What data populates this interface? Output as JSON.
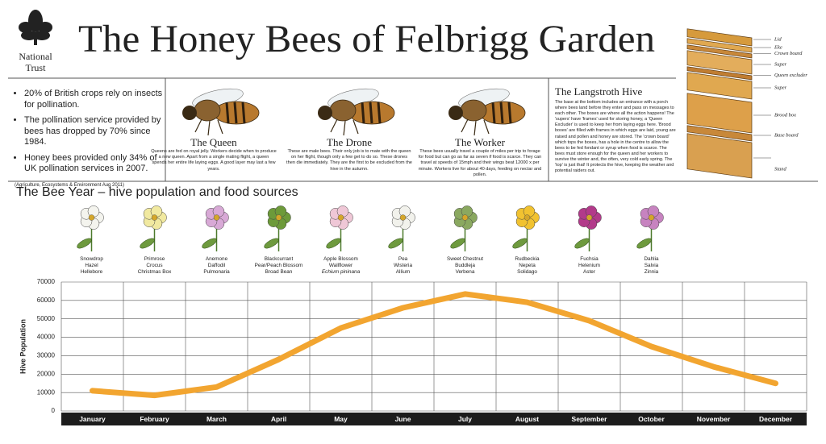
{
  "header": {
    "logo": [
      "National",
      "Trust"
    ],
    "title": "The Honey Bees of Felbrigg Garden"
  },
  "facts": {
    "items": [
      "20% of British crops rely on insects for pollination.",
      "The pollination service provided by bees has dropped by 70% since 1984.",
      "Honey bees provided only 34% of UK pollination services in 2007."
    ],
    "source": "(Agriculture, Ecosystems & Environment Aug 2011)"
  },
  "bees": [
    {
      "title": "The Queen",
      "text": "Queens are fed on royal jelly. Workers decide when to produce a new queen. Apart from a single mating flight, a queen spends her entire life laying eggs. A good layer may last a few years."
    },
    {
      "title": "The Drone",
      "text": "These are male bees. Their only job is to mate with the queen on her flight, though only a few get to do so. These drones then die immediately. They are the first to be excluded from the hive in the autumn."
    },
    {
      "title": "The Worker",
      "text": "These bees usually travel a couple of miles per trip to forage for food but can go as far as seven if food is scarce. They can travel at speeds of 15mph and their wings beat 12000 x per minute. Workers live for about 40 days, feeding on nectar and pollen."
    }
  ],
  "hive": {
    "title": "The Langstroth Hive",
    "text": "The base at the bottom includes an entrance with a porch where bees land before they enter and pass on messages to each other. The boxes are where all the action happens! The 'supers' have 'frames' used for storing honey, a 'Queen Excluder' is used to keep her from laying eggs here. 'Brood boxes' are filled with frames in which eggs are laid, young are raised and pollen and honey are stored. The 'crown board' which tops the boxes, has a hole in the centre to allow the bees to be fed fondant or syrup when food is scarce. The bees must store enough for the queen and her workers to survive the winter and, the often, very cold early spring. The 'top' is just that! It protects the hive, keeping the weather and potential raiders out.",
    "parts": [
      "Lid",
      "Eke",
      "Crown board",
      "Super",
      "Queen excluder",
      "Super",
      "Brood box",
      "Base board",
      "Stand"
    ]
  },
  "flowers": [
    [
      "Snowdrop",
      "Hazel",
      "Hellebore"
    ],
    [
      "Primrose",
      "Crocus",
      "Christmas Box"
    ],
    [
      "Anemone",
      "Daffodil",
      "Pulmonaria"
    ],
    [
      "Blackcurrant",
      "Pear/Peach Blossom",
      "Broad Bean"
    ],
    [
      "Apple Blossom",
      "Wallflower",
      "Echium pininana"
    ],
    [
      "Pea",
      "Wisteria",
      "Allium"
    ],
    [
      "Sweet Chestnut",
      "Buddleja",
      "Verbena"
    ],
    [
      "Rudbeckia",
      "Nepeta",
      "Solidago"
    ],
    [
      "Fuchsia",
      "Helenium",
      "Aster"
    ],
    [
      "Dahlia",
      "Salvia",
      "Zinnia"
    ]
  ],
  "chart_data": {
    "type": "line",
    "title": "The Bee Year – hive population and food sources",
    "y_label": "Hive Population",
    "categories": [
      "January",
      "February",
      "March",
      "April",
      "May",
      "June",
      "July",
      "August",
      "September",
      "October",
      "November",
      "December"
    ],
    "series": [
      {
        "name": "Hive Population",
        "color": "#f2a530",
        "values": [
          11000,
          8500,
          13000,
          28000,
          45000,
          56000,
          63500,
          59000,
          49000,
          35000,
          24000,
          15000
        ]
      }
    ],
    "ylim": [
      0,
      70000
    ],
    "yticks": [
      0,
      10000,
      20000,
      30000,
      40000,
      50000,
      60000,
      70000
    ],
    "grid": true
  }
}
